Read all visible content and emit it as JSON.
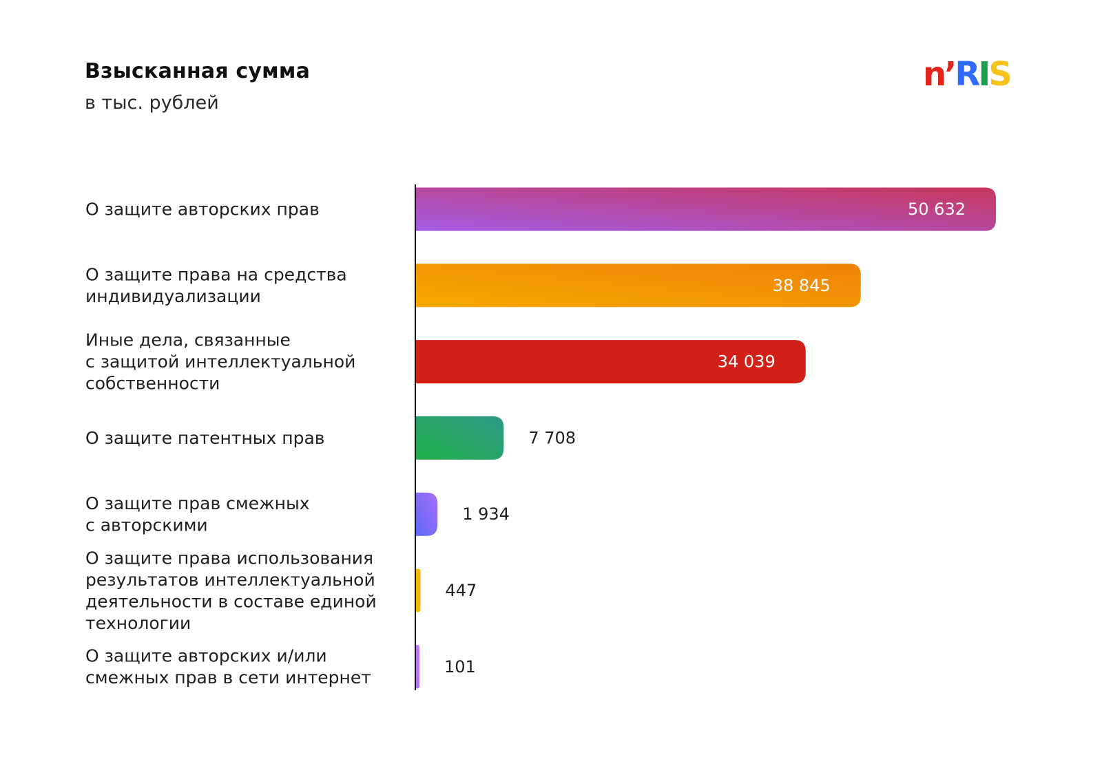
{
  "header": {
    "title": "Взысканная сумма",
    "subtitle": "в тыс. рублей"
  },
  "logo": {
    "letters": [
      {
        "text": "n",
        "color": "#e2231a"
      },
      {
        "text": "’",
        "color": "#e2231a"
      },
      {
        "text": "R",
        "color": "#2f6bff"
      },
      {
        "text": "I",
        "color": "#1aa04a"
      },
      {
        "text": "S",
        "color": "#f6c21c"
      }
    ]
  },
  "chart_data": {
    "type": "bar",
    "orientation": "horizontal",
    "title": "Взысканная сумма",
    "subtitle": "в тыс. рублей",
    "xlabel": "",
    "ylabel": "",
    "xlim": [
      0,
      50632
    ],
    "grid": false,
    "legend": "none",
    "categories": [
      [
        "О защите авторских прав"
      ],
      [
        "О защите права на средства",
        "индивидуализации"
      ],
      [
        "Иные дела, связанные",
        "с защитой интеллектуальной",
        "собственности"
      ],
      [
        "О защите патентных прав"
      ],
      [
        "О защите прав смежных",
        "с авторскими"
      ],
      [
        "О защите права использования",
        "результатов интеллектуальной",
        "деятельности в составе единой",
        "технологии"
      ],
      [
        "О защите авторских и/или",
        "смежных прав в сети интернет"
      ]
    ],
    "values": [
      50632,
      38845,
      34039,
      7708,
      1934,
      447,
      101
    ],
    "value_labels": [
      "50 632",
      "38 845",
      "34 039",
      "7 708",
      "1 934",
      "447",
      "101"
    ],
    "colors": [
      [
        "#a45be4",
        "#c8375a"
      ],
      [
        "#f7a900",
        "#ee8208"
      ],
      [
        "#d22018",
        "#d22018"
      ],
      [
        "#21b04c",
        "#2e9787"
      ],
      [
        "#5b6cf7",
        "#a86cf6"
      ],
      [
        "#f6b800",
        "#f6b800"
      ],
      [
        "#a86cf6",
        "#c07bf2"
      ]
    ]
  }
}
